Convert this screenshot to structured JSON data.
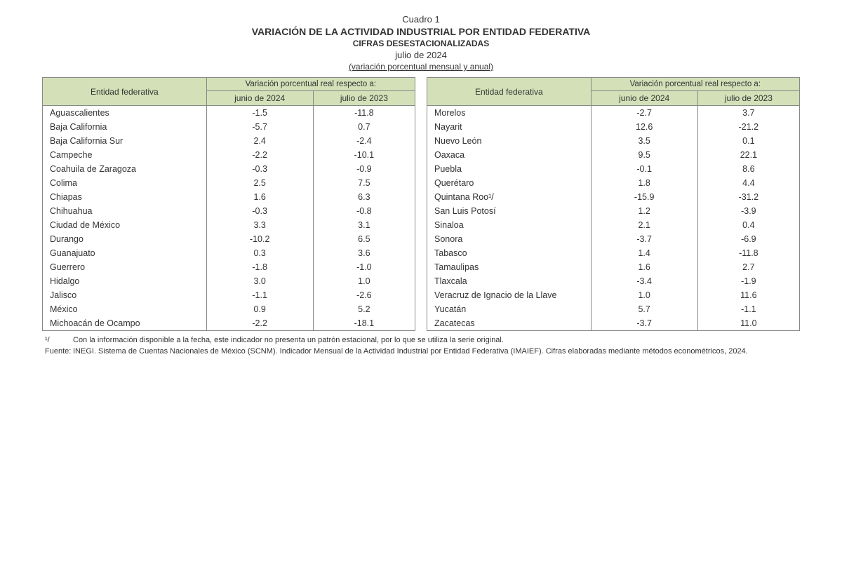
{
  "header": {
    "cuadro": "Cuadro 1",
    "title": "VARIACIÓN DE LA ACTIVIDAD INDUSTRIAL POR ENTIDAD FEDERATIVA",
    "subtitle1": "CIFRAS DESESTACIONALIZADAS",
    "subtitle2": "julio de 2024",
    "subtitle3": "(variación porcentual mensual y anual)"
  },
  "columns": {
    "entity": "Entidad federativa",
    "var_header": "Variación porcentual real respecto a:",
    "junio": "junio de 2024",
    "julio": "julio de 2023"
  },
  "left_rows": [
    {
      "e": "Aguascalientes",
      "j": "-1.5",
      "u": "-11.8"
    },
    {
      "e": "Baja California",
      "j": "-5.7",
      "u": "0.7"
    },
    {
      "e": "Baja California Sur",
      "j": "2.4",
      "u": "-2.4"
    },
    {
      "e": "Campeche",
      "j": "-2.2",
      "u": "-10.1"
    },
    {
      "e": "Coahuila de Zaragoza",
      "j": "-0.3",
      "u": "-0.9"
    },
    {
      "e": "Colima",
      "j": "2.5",
      "u": "7.5"
    },
    {
      "e": "Chiapas",
      "j": "1.6",
      "u": "6.3"
    },
    {
      "e": "Chihuahua",
      "j": "-0.3",
      "u": "-0.8"
    },
    {
      "e": "Ciudad de México",
      "j": "3.3",
      "u": "3.1"
    },
    {
      "e": "Durango",
      "j": "-10.2",
      "u": "6.5"
    },
    {
      "e": "Guanajuato",
      "j": "0.3",
      "u": "3.6"
    },
    {
      "e": "Guerrero",
      "j": "-1.8",
      "u": "-1.0"
    },
    {
      "e": "Hidalgo",
      "j": "3.0",
      "u": "1.0"
    },
    {
      "e": "Jalisco",
      "j": "-1.1",
      "u": "-2.6"
    },
    {
      "e": "México",
      "j": "0.9",
      "u": "5.2"
    },
    {
      "e": "Michoacán de Ocampo",
      "j": "-2.2",
      "u": "-18.1"
    }
  ],
  "right_rows": [
    {
      "e": "Morelos",
      "j": "-2.7",
      "u": "3.7"
    },
    {
      "e": "Nayarit",
      "j": "12.6",
      "u": "-21.2"
    },
    {
      "e": "Nuevo León",
      "j": "3.5",
      "u": "0.1"
    },
    {
      "e": "Oaxaca",
      "j": "9.5",
      "u": "22.1"
    },
    {
      "e": "Puebla",
      "j": "-0.1",
      "u": "8.6"
    },
    {
      "e": "Querétaro",
      "j": "1.8",
      "u": "4.4"
    },
    {
      "e": "Quintana Roo¹/",
      "j": "-15.9",
      "u": "-31.2"
    },
    {
      "e": "San Luis Potosí",
      "j": "1.2",
      "u": "-3.9"
    },
    {
      "e": "Sinaloa",
      "j": "2.1",
      "u": "0.4"
    },
    {
      "e": "Sonora",
      "j": "-3.7",
      "u": "-6.9"
    },
    {
      "e": "Tabasco",
      "j": "1.4",
      "u": "-11.8"
    },
    {
      "e": "Tamaulipas",
      "j": "1.6",
      "u": "2.7"
    },
    {
      "e": "Tlaxcala",
      "j": "-3.4",
      "u": "-1.9"
    },
    {
      "e": "Veracruz de Ignacio de la Llave",
      "j": "1.0",
      "u": "11.6"
    },
    {
      "e": "Yucatán",
      "j": "5.7",
      "u": "-1.1"
    },
    {
      "e": "Zacatecas",
      "j": "-3.7",
      "u": "11.0"
    }
  ],
  "footnotes": {
    "note1_marker": "¹/",
    "note1_text": "Con la información disponible a la fecha, este indicador no presenta un patrón estacional, por lo que se utiliza la serie original.",
    "fuente_marker": "Fuente:",
    "fuente_text": "INEGI. Sistema de Cuentas Nacionales de México (SCNM). Indicador Mensual de la Actividad Industrial por Entidad Federativa (IMAIEF). Cifras elaboradas mediante métodos econométricos, 2024."
  },
  "style": {
    "header_bg": "#d3e0b8",
    "border_color": "#888888",
    "text_color": "#333333",
    "font_size_body": 12.5,
    "font_size_header": 14,
    "font_size_footnote": 11
  }
}
